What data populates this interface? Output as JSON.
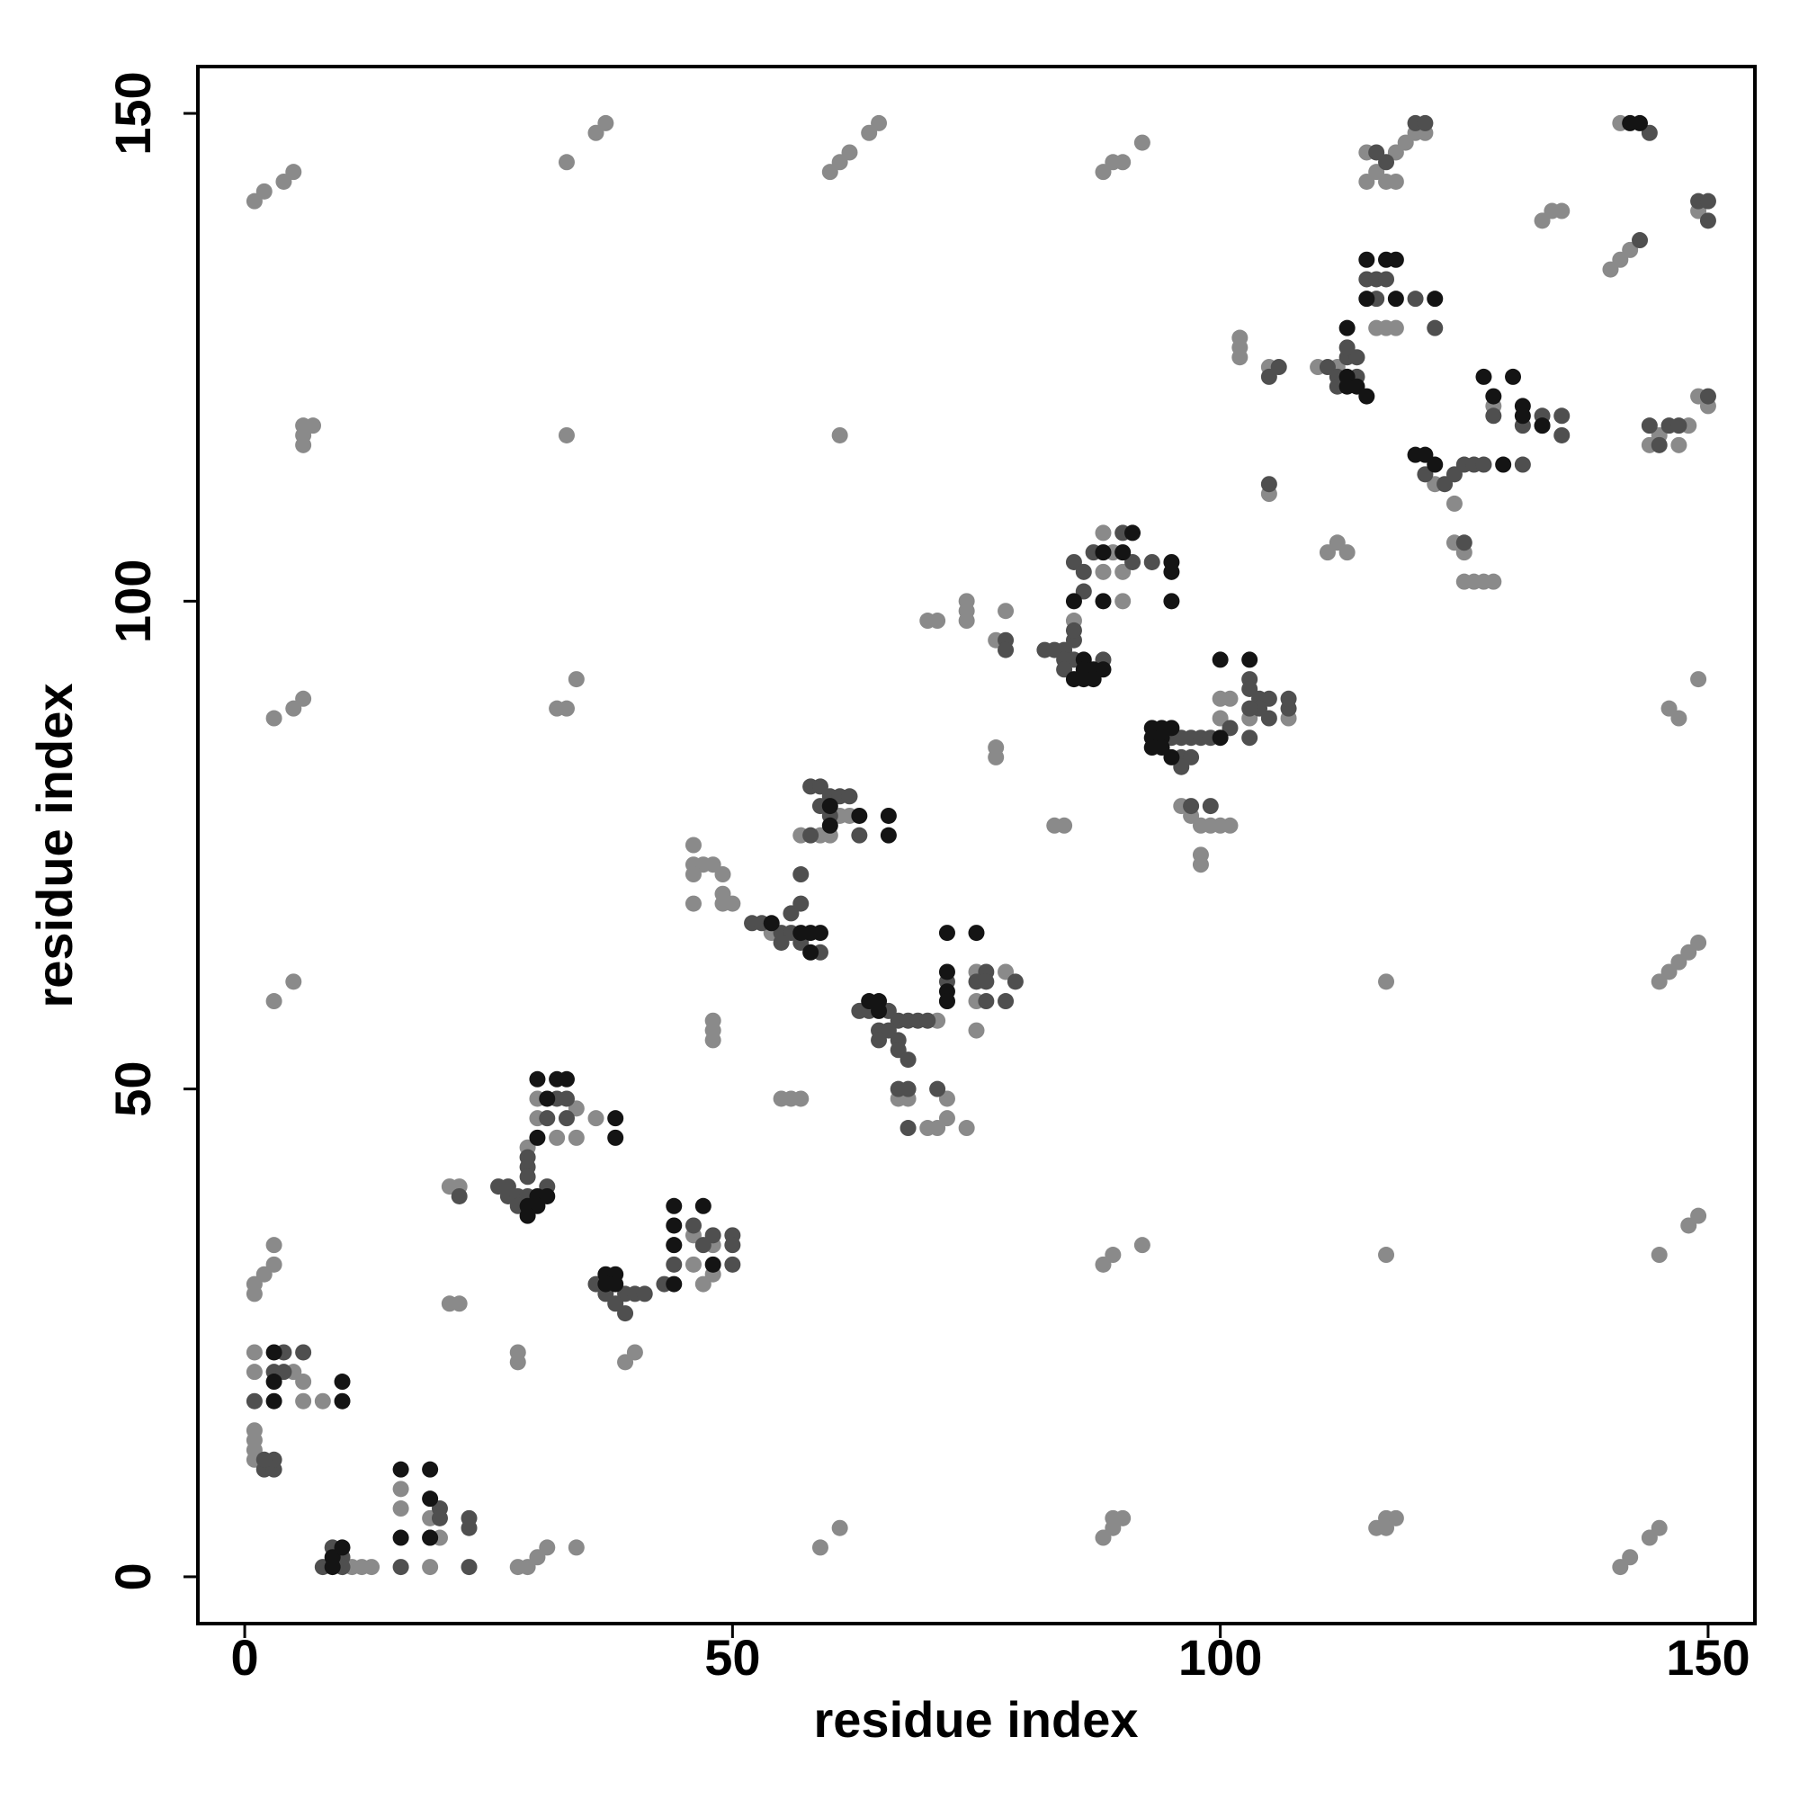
{
  "chart_data": {
    "type": "scatter",
    "xlabel": "residue index",
    "ylabel": "residue index",
    "xlim": [
      -4.8,
      154.8
    ],
    "ylim": [
      -4.8,
      154.8
    ],
    "xticks": [
      0,
      50,
      100,
      150
    ],
    "yticks": [
      0,
      50,
      100,
      150
    ],
    "grid": false,
    "series": [
      {
        "color": "#8a8a8a",
        "x": [
          1,
          2,
          4,
          5,
          33,
          36,
          37,
          60,
          61,
          62,
          64,
          65,
          88,
          89,
          90,
          92,
          115,
          118,
          116,
          117,
          118,
          115,
          119,
          120,
          121,
          141,
          149,
          133,
          134,
          135,
          140,
          141,
          142,
          116,
          117,
          118,
          102,
          102,
          102,
          105,
          110,
          112,
          128,
          133,
          122,
          124,
          124,
          125,
          125,
          126,
          127,
          128,
          144,
          145,
          147,
          148,
          149,
          150,
          6,
          7,
          6,
          6,
          33,
          61,
          105,
          111,
          112,
          113,
          88,
          88,
          90,
          90,
          89,
          70,
          71,
          74,
          74,
          74,
          78,
          77,
          85,
          100,
          101,
          103,
          100,
          107,
          96,
          98,
          99,
          100,
          101,
          98,
          98,
          97,
          77,
          77,
          83,
          84,
          3,
          5,
          6,
          32,
          33,
          34,
          147,
          146,
          149,
          57,
          59,
          60,
          61,
          62,
          46,
          46,
          47,
          48,
          46,
          49,
          46,
          49,
          50,
          49,
          54,
          75,
          78,
          72,
          75,
          75,
          71,
          67,
          68,
          72,
          70,
          71,
          72,
          74,
          48,
          48,
          48,
          55,
          56,
          57,
          3,
          5,
          117,
          145,
          146,
          147,
          148,
          149,
          30,
          34,
          36,
          30,
          32,
          34,
          29,
          21,
          22,
          21,
          22,
          28,
          28,
          39,
          40,
          44,
          46,
          46,
          47,
          48,
          48,
          3,
          2,
          1,
          3,
          1,
          1,
          1,
          5,
          6,
          6,
          8,
          1,
          1,
          1,
          1,
          12,
          13,
          11,
          16,
          16,
          19,
          19,
          20,
          19,
          28,
          29,
          30,
          31,
          34,
          59,
          61,
          88,
          89,
          90,
          89,
          116,
          117,
          118,
          117,
          141,
          142,
          144,
          145,
          88,
          89,
          92,
          117,
          145,
          148,
          149
        ],
        "values": [
          141,
          142,
          143,
          144,
          145,
          148,
          149,
          144,
          145,
          146,
          148,
          149,
          144,
          145,
          145,
          147,
          146,
          146,
          144,
          143,
          143,
          143,
          147,
          148,
          148,
          149,
          140,
          139,
          140,
          140,
          134,
          135,
          136,
          128,
          128,
          128,
          126,
          125,
          127,
          124,
          124,
          124,
          120,
          118,
          112,
          110,
          106,
          105,
          102,
          102,
          102,
          102,
          116,
          117,
          116,
          118,
          121,
          120,
          118,
          118,
          117,
          116,
          117,
          117,
          111,
          105,
          106,
          105,
          107,
          103,
          103,
          100,
          105,
          98,
          98,
          100,
          99,
          98,
          99,
          96,
          98,
          90,
          90,
          88,
          88,
          88,
          79,
          77,
          77,
          77,
          77,
          74,
          73,
          78,
          84,
          85,
          77,
          77,
          88,
          89,
          90,
          89,
          89,
          92,
          88,
          89,
          92,
          76,
          76,
          76,
          78,
          78,
          75,
          73,
          73,
          73,
          72,
          72,
          69,
          69,
          69,
          70,
          66,
          62,
          62,
          59,
          59,
          56,
          57,
          49,
          49,
          49,
          46,
          46,
          47,
          46,
          57,
          56,
          55,
          49,
          49,
          49,
          59,
          61,
          61,
          61,
          62,
          63,
          64,
          65,
          49,
          48,
          47,
          47,
          45,
          45,
          44,
          40,
          40,
          28,
          28,
          23,
          22,
          22,
          23,
          34,
          32,
          35,
          30,
          34,
          31,
          34,
          31,
          30,
          32,
          29,
          23,
          21,
          21,
          20,
          18,
          18,
          15,
          14,
          13,
          12,
          1,
          1,
          1,
          9,
          7,
          6,
          4,
          4,
          1,
          1,
          1,
          2,
          3,
          3,
          3,
          5,
          4,
          5,
          6,
          6,
          5,
          6,
          6,
          5,
          1,
          2,
          4,
          5,
          32,
          33,
          34,
          33,
          33,
          36,
          37
        ]
      },
      {
        "color": "#4f4f4f",
        "x": [
          116,
          117,
          120,
          121,
          144,
          149,
          150,
          150,
          143,
          115,
          116,
          117,
          116,
          120,
          122,
          113,
          114,
          111,
          112,
          114,
          112,
          105,
          106,
          113,
          128,
          131,
          133,
          135,
          135,
          121,
          123,
          124,
          125,
          126,
          127,
          131,
          125,
          144,
          145,
          146,
          147,
          150,
          105,
          90,
          87,
          91,
          93,
          85,
          86,
          86,
          78,
          78,
          82,
          83,
          84,
          85,
          85,
          85,
          84,
          84,
          88,
          103,
          103,
          104,
          105,
          107,
          107,
          104,
          103,
          101,
          103,
          105,
          95,
          96,
          97,
          98,
          99,
          96,
          97,
          96,
          97,
          99,
          58,
          59,
          60,
          61,
          62,
          59,
          60,
          58,
          63,
          57,
          52,
          53,
          55,
          56,
          56,
          57,
          55,
          57,
          59,
          76,
          72,
          75,
          76,
          79,
          76,
          78,
          63,
          64,
          66,
          67,
          68,
          69,
          70,
          65,
          66,
          67,
          67,
          68,
          65,
          67,
          68,
          71,
          68,
          32,
          33,
          31,
          33,
          29,
          29,
          26,
          27,
          27,
          28,
          29,
          31,
          29,
          28,
          22,
          46,
          48,
          50,
          47,
          50,
          44,
          50,
          43,
          36,
          37,
          39,
          40,
          41,
          38,
          39,
          4,
          6,
          3,
          4,
          1,
          2,
          3,
          3,
          2,
          9,
          10,
          8,
          10,
          20,
          20,
          16,
          23,
          23,
          23
        ],
        "values": [
          146,
          145,
          149,
          149,
          148,
          141,
          141,
          139,
          137,
          133,
          133,
          133,
          131,
          131,
          128,
          125,
          125,
          124,
          123,
          123,
          122,
          123,
          124,
          126,
          119,
          118,
          119,
          119,
          117,
          113,
          112,
          113,
          114,
          114,
          114,
          114,
          106,
          118,
          116,
          118,
          118,
          121,
          112,
          107,
          105,
          104,
          104,
          104,
          103,
          101,
          96,
          95,
          95,
          95,
          95,
          94,
          96,
          97,
          94,
          93,
          94,
          92,
          91,
          90,
          90,
          89,
          90,
          89,
          89,
          87,
          86,
          88,
          86,
          86,
          86,
          86,
          86,
          84,
          84,
          83,
          79,
          79,
          81,
          81,
          80,
          80,
          80,
          79,
          78,
          76,
          76,
          72,
          67,
          67,
          66,
          66,
          68,
          69,
          65,
          65,
          64,
          62,
          61,
          61,
          61,
          61,
          59,
          59,
          58,
          58,
          58,
          57,
          57,
          57,
          57,
          56,
          56,
          55,
          54,
          53,
          55,
          50,
          50,
          50,
          46,
          49,
          49,
          47,
          47,
          43,
          42,
          40,
          40,
          39,
          39,
          39,
          40,
          41,
          38,
          39,
          36,
          35,
          35,
          34,
          34,
          32,
          32,
          30,
          30,
          29,
          29,
          29,
          29,
          28,
          27,
          23,
          23,
          21,
          21,
          18,
          11,
          11,
          12,
          12,
          3,
          2,
          1,
          1,
          7,
          6,
          1,
          5,
          6,
          1
        ]
      },
      {
        "color": "#141414",
        "x": [
          142,
          143,
          115,
          117,
          118,
          115,
          118,
          122,
          113,
          113,
          115,
          114,
          113,
          127,
          130,
          128,
          131,
          131,
          133,
          120,
          121,
          122,
          129,
          91,
          88,
          90,
          95,
          95,
          85,
          88,
          95,
          86,
          86,
          87,
          88,
          87,
          86,
          85,
          100,
          103,
          100,
          93,
          94,
          95,
          93,
          94,
          93,
          94,
          95,
          60,
          63,
          66,
          66,
          60,
          57,
          58,
          59,
          58,
          54,
          72,
          75,
          72,
          72,
          72,
          64,
          65,
          65,
          30,
          32,
          33,
          31,
          30,
          38,
          38,
          30,
          31,
          29,
          30,
          29,
          44,
          47,
          44,
          44,
          44,
          48,
          37,
          38,
          37,
          38,
          3,
          3,
          10,
          3,
          10,
          9,
          10,
          9,
          16,
          19,
          19,
          16,
          19
        ],
        "values": [
          149,
          149,
          135,
          135,
          135,
          131,
          131,
          131,
          128,
          123,
          121,
          122,
          122,
          123,
          123,
          121,
          120,
          119,
          118,
          115,
          115,
          114,
          114,
          107,
          105,
          105,
          104,
          103,
          100,
          100,
          100,
          94,
          93,
          93,
          93,
          92,
          92,
          92,
          94,
          94,
          86,
          87,
          87,
          87,
          86,
          86,
          85,
          85,
          84,
          79,
          78,
          78,
          76,
          77,
          66,
          66,
          66,
          64,
          67,
          66,
          66,
          62,
          60,
          59,
          59,
          59,
          58,
          51,
          51,
          51,
          49,
          45,
          47,
          45,
          39,
          39,
          38,
          38,
          37,
          38,
          38,
          36,
          34,
          30,
          32,
          31,
          31,
          30,
          30,
          23,
          20,
          20,
          18,
          18,
          2,
          3,
          1,
          11,
          11,
          8,
          4,
          4
        ]
      }
    ]
  }
}
